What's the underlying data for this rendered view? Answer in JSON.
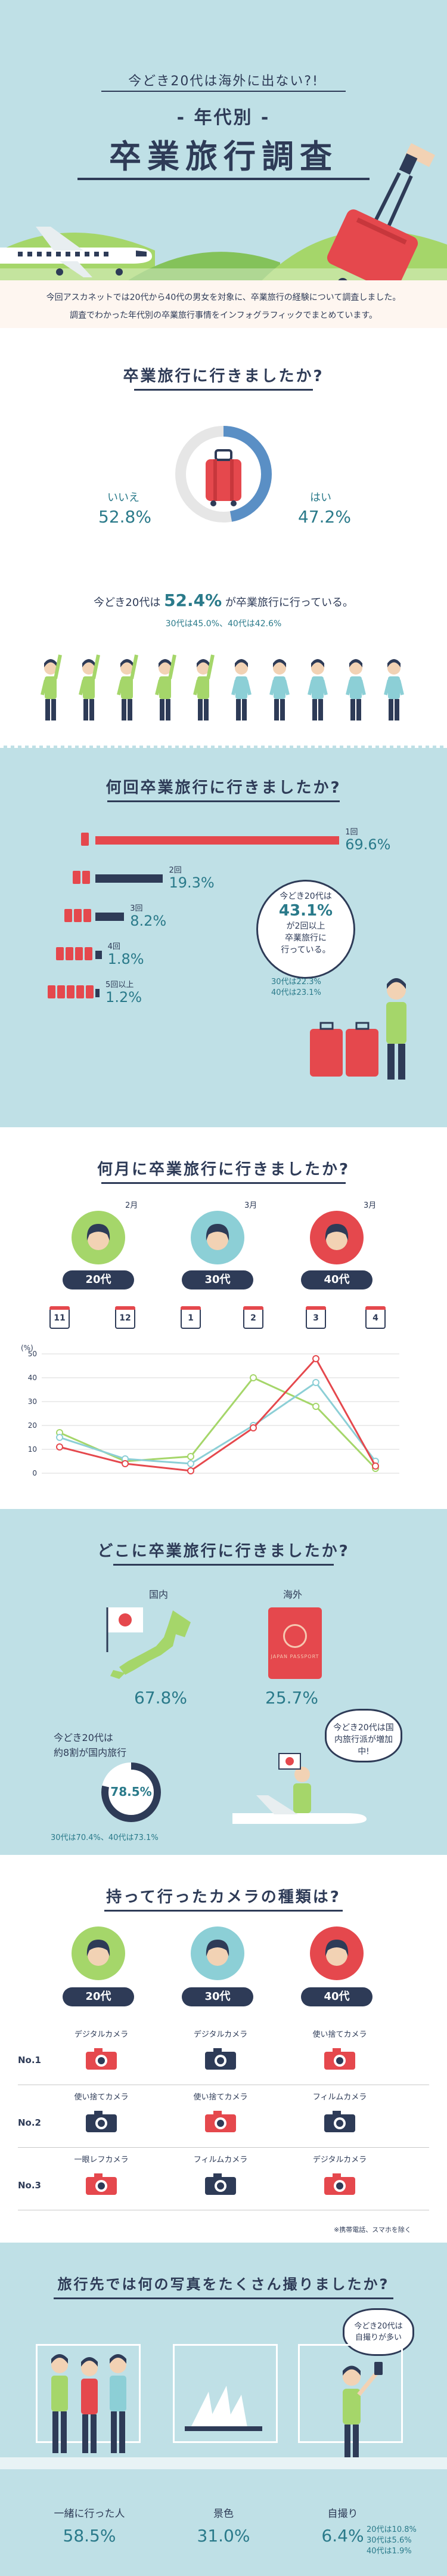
{
  "header": {
    "kicker": "今どき20代は海外に出ない?!",
    "subtitle": "- 年代別 -",
    "title": "卒業旅行調査",
    "intro_lines": [
      "今回アスカネットでは20代から40代の男女を対象に、卒業旅行の経験について調査しました。",
      "調査でわかった年代別の卒業旅行事情をインフォグラフィックでまとめています。"
    ]
  },
  "q1": {
    "title": "卒業旅行に行きましたか?",
    "no_label": "いいえ",
    "no_pct": "52.8%",
    "yes_label": "はい",
    "yes_pct": "47.2%",
    "summary_pre": "今どき20代は",
    "summary_pct": "52.4%",
    "summary_post": "が卒業旅行に行っている。",
    "summary_sub": "30代は45.0%、40代は42.6%",
    "people_raised": 5,
    "people_total": 10,
    "yes_fraction": 0.472
  },
  "q2": {
    "title": "何回卒業旅行に行きましたか?",
    "bars": [
      {
        "label": "1回",
        "pct": "69.6%",
        "value": 69.6
      },
      {
        "label": "2回",
        "pct": "19.3%",
        "value": 19.3
      },
      {
        "label": "3回",
        "pct": "8.2%",
        "value": 8.2
      },
      {
        "label": "4回",
        "pct": "1.8%",
        "value": 1.8
      },
      {
        "label": "5回以上",
        "pct": "1.2%",
        "value": 1.2
      }
    ],
    "callout_l1": "今どき20代は",
    "callout_pct": "43.1%",
    "callout_l2": "が2回以上",
    "callout_l3": "卒業旅行に",
    "callout_l4": "行っている。",
    "callout_sub1": "30代は22.3%",
    "callout_sub2": "40代は23.1%"
  },
  "q3": {
    "title": "何月に卒業旅行に行きましたか?",
    "ages": [
      {
        "month": "2月",
        "label": "20代",
        "color": "#a5d66a"
      },
      {
        "month": "3月",
        "label": "30代",
        "color": "#8ccfd6"
      },
      {
        "month": "3月",
        "label": "40代",
        "color": "#e5484d"
      }
    ],
    "calendar": [
      "11",
      "12",
      "1",
      "2",
      "3",
      "4"
    ],
    "y_unit": "(%)",
    "y_ticks": [
      "50",
      "40",
      "30",
      "20",
      "10",
      "0"
    ]
  },
  "chart_data": {
    "type": "line",
    "title": "何月に卒業旅行に行きましたか?",
    "x": [
      "11",
      "12",
      "1",
      "2",
      "3",
      "4"
    ],
    "ylabel": "(%)",
    "ylim": [
      0,
      50
    ],
    "series": [
      {
        "name": "20代",
        "color": "#a5d66a",
        "values": [
          17,
          5,
          7,
          40,
          28,
          2
        ]
      },
      {
        "name": "30代",
        "color": "#8ccfd6",
        "values": [
          15,
          6,
          4,
          20,
          38,
          5
        ]
      },
      {
        "name": "40代",
        "color": "#e5484d",
        "values": [
          11,
          4,
          1,
          19,
          48,
          3
        ]
      }
    ]
  },
  "q4": {
    "title": "どこに卒業旅行に行きましたか?",
    "domestic_label": "国内",
    "domestic_pct": "67.8%",
    "overseas_label": "海外",
    "overseas_pct": "25.7%",
    "passport_text": "JAPAN PASSPORT",
    "summary_l1": "今どき20代は",
    "summary_l2": "約8割が国内旅行",
    "circle_pct": "78.5%",
    "circle_fraction": 0.785,
    "summary_sub": "30代は70.4%、40代は73.1%",
    "bubble": "今どき20代は国内旅行派が増加中!"
  },
  "q5": {
    "title": "持って行ったカメラの種類は?",
    "ages": [
      "20代",
      "30代",
      "40代"
    ],
    "ranks": [
      "No.1",
      "No.2",
      "No.3"
    ],
    "cameras": [
      [
        "デジタルカメラ",
        "デジタルカメラ",
        "使い捨てカメラ"
      ],
      [
        "使い捨てカメラ",
        "使い捨てカメラ",
        "フィルムカメラ"
      ],
      [
        "一眼レフカメラ",
        "フィルムカメラ",
        "デジタルカメラ"
      ]
    ],
    "note": "※携帯電話、スマホを除く"
  },
  "q6": {
    "title": "旅行先では何の写真をたくさん撮りましたか?",
    "bubble": "今どき20代は自撮りが多い",
    "items": [
      {
        "label": "一緒に行った人",
        "pct": "58.5%"
      },
      {
        "label": "景色",
        "pct": "31.0%"
      },
      {
        "label": "自撮り",
        "pct": "6.4%"
      }
    ],
    "selfie_sub": [
      "20代は10.8%",
      "30代は5.6%",
      "40代は1.9%"
    ]
  },
  "colors": {
    "navy": "#2e3b57",
    "teal": "#2a7a8a",
    "red": "#e5484d",
    "light_blue": "#bfe0e6",
    "green": "#a5d66a"
  }
}
